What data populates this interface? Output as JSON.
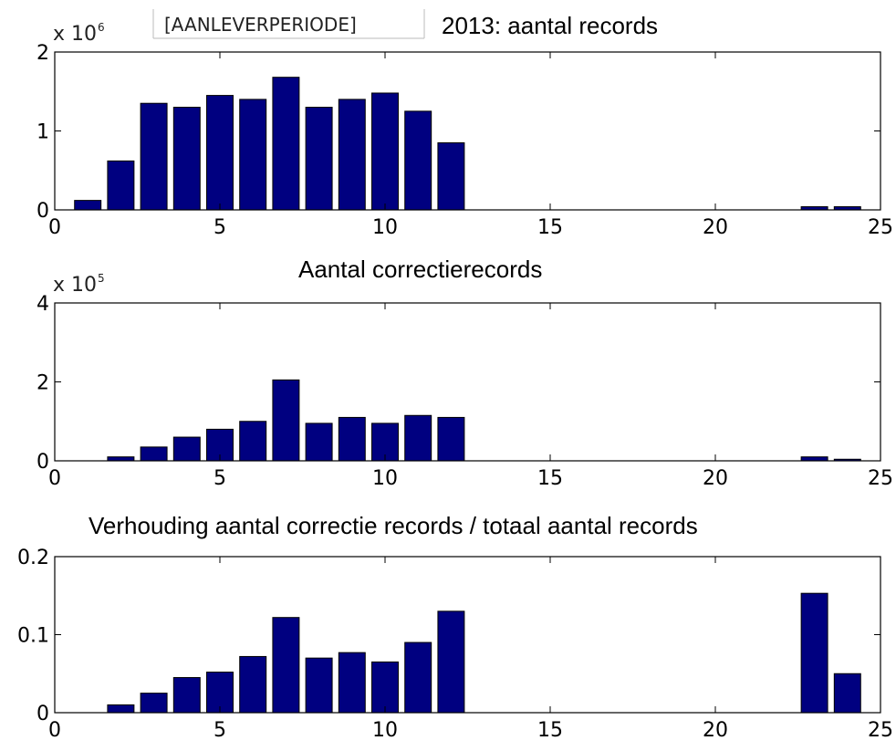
{
  "header_tag": "[AANLEVERPERIODE]",
  "bar_color": "#000080",
  "chart_data": [
    {
      "type": "bar",
      "title": "2013: aantal records",
      "exponent_label": "x 10",
      "exponent_power": "6",
      "xlim": [
        0,
        25
      ],
      "ylim": [
        0,
        2000000
      ],
      "xticks": [
        0,
        5,
        10,
        15,
        20,
        25
      ],
      "yticks": [
        0,
        1,
        2
      ],
      "y_scale_factor": 1000000,
      "x": [
        1,
        2,
        3,
        4,
        5,
        6,
        7,
        8,
        9,
        10,
        11,
        12,
        23,
        24
      ],
      "values": [
        120000,
        620000,
        1350000,
        1300000,
        1450000,
        1400000,
        1680000,
        1300000,
        1400000,
        1480000,
        1250000,
        850000,
        40000,
        40000
      ]
    },
    {
      "type": "bar",
      "title": "Aantal correctierecords",
      "exponent_label": "x 10",
      "exponent_power": "5",
      "xlim": [
        0,
        25
      ],
      "ylim": [
        0,
        400000
      ],
      "xticks": [
        0,
        5,
        10,
        15,
        20,
        25
      ],
      "yticks": [
        0,
        2,
        4
      ],
      "y_scale_factor": 100000,
      "x": [
        1,
        2,
        3,
        4,
        5,
        6,
        7,
        8,
        9,
        10,
        11,
        12,
        23,
        24
      ],
      "values": [
        0,
        10000,
        35000,
        60000,
        80000,
        100000,
        205000,
        95000,
        110000,
        95000,
        115000,
        110000,
        10000,
        4000
      ]
    },
    {
      "type": "bar",
      "title": "Verhouding aantal correctie records  / totaal aantal records",
      "xlim": [
        0,
        25
      ],
      "ylim": [
        0,
        0.2
      ],
      "xticks": [
        0,
        5,
        10,
        15,
        20,
        25
      ],
      "yticks": [
        0,
        0.1,
        0.2
      ],
      "y_scale_factor": 1,
      "x": [
        1,
        2,
        3,
        4,
        5,
        6,
        7,
        8,
        9,
        10,
        11,
        12,
        23,
        24
      ],
      "values": [
        0,
        0.01,
        0.025,
        0.045,
        0.052,
        0.072,
        0.122,
        0.07,
        0.077,
        0.065,
        0.09,
        0.13,
        0.153,
        0.05
      ]
    }
  ]
}
